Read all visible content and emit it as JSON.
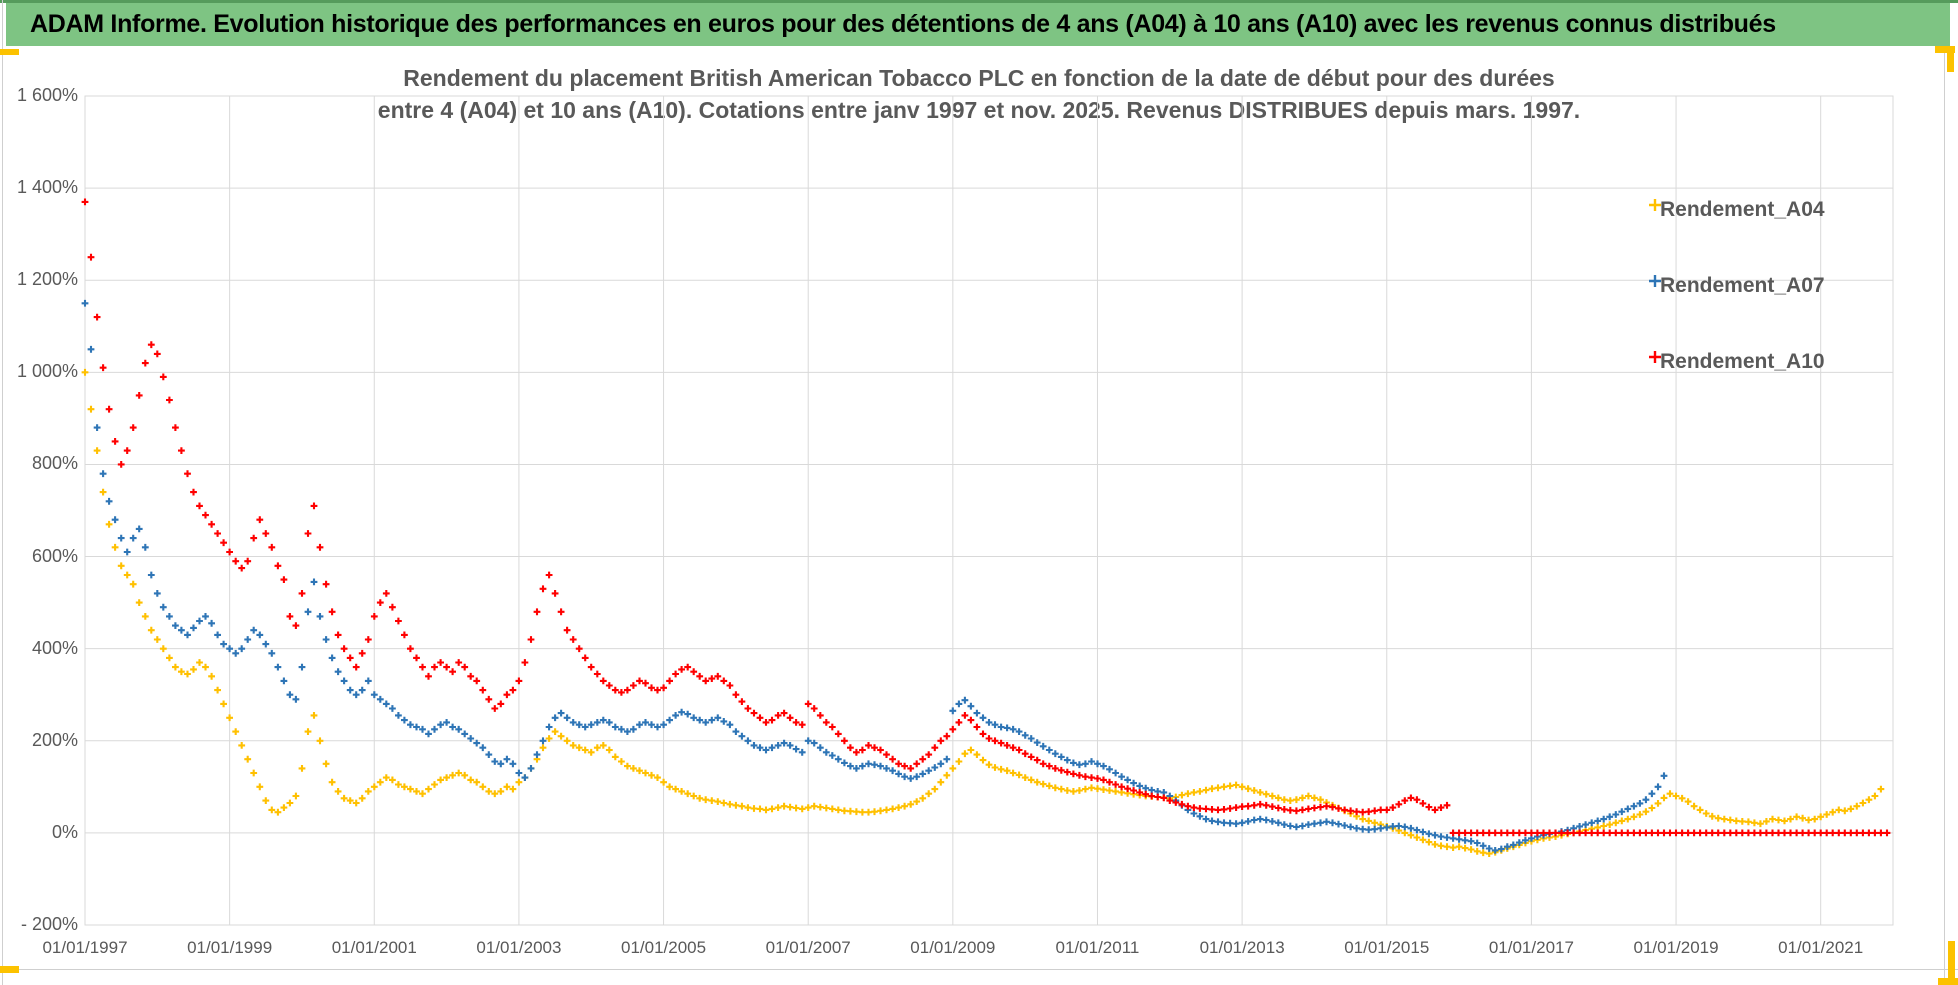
{
  "header": {
    "title": "ADAM Informe. Evolution historique des performances en euros pour des détentions de 4 ans (A04) à 10 ans (A10) avec les revenus connus distribués"
  },
  "accent_colors": {
    "header_green": "#7ec483",
    "selection_orange": "#fcc200",
    "text_gray": "#595959",
    "gridline_gray": "#d9d9d9"
  },
  "chart_data": {
    "type": "scatter",
    "marker": "plus",
    "title_line1": "Rendement du placement British American Tobacco PLC en fonction de la date de début pour des durées",
    "title_line2": "entre 4 (A04) et 10 ans (A10). Cotations entre janv 1997 et nov. 2025. Revenus DISTRIBUES depuis mars. 1997.",
    "grid": true,
    "legend_position": "right-top",
    "x_axis": {
      "start_year": 1997,
      "end_year": 2022,
      "tick_interval_years": 2,
      "tick_labels": [
        "01/01/1997",
        "01/01/1999",
        "01/01/2001",
        "01/01/2003",
        "01/01/2005",
        "01/01/2007",
        "01/01/2009",
        "01/01/2011",
        "01/01/2013",
        "01/01/2015",
        "01/01/2017",
        "01/01/2019",
        "01/01/2021"
      ]
    },
    "y_axis": {
      "min": -200,
      "max": 1600,
      "step": 200,
      "tick_labels_top_to_bottom": [
        "1 600%",
        "1 400%",
        "1 200%",
        "1 000%",
        "800%",
        "600%",
        "400%",
        "200%",
        "0%",
        "- 200%"
      ]
    },
    "series": [
      {
        "name": "Rendement_A04",
        "color": "#FFC000",
        "start": "1997-01",
        "step_months": 1,
        "values": [
          1000,
          920,
          830,
          740,
          670,
          620,
          580,
          560,
          540,
          500,
          470,
          440,
          420,
          400,
          380,
          360,
          350,
          345,
          355,
          370,
          360,
          340,
          310,
          280,
          250,
          220,
          190,
          160,
          130,
          100,
          70,
          50,
          45,
          55,
          65,
          80,
          140,
          220,
          255,
          200,
          150,
          110,
          90,
          75,
          70,
          65,
          75,
          90,
          100,
          110,
          120,
          115,
          105,
          100,
          95,
          90,
          85,
          95,
          105,
          115,
          120,
          125,
          130,
          125,
          115,
          110,
          100,
          90,
          85,
          90,
          100,
          95,
          110,
          120,
          140,
          160,
          185,
          205,
          220,
          210,
          200,
          190,
          185,
          180,
          175,
          185,
          190,
          180,
          165,
          155,
          145,
          140,
          135,
          130,
          125,
          120,
          110,
          100,
          95,
          90,
          85,
          80,
          75,
          72,
          70,
          68,
          65,
          62,
          60,
          58,
          55,
          53,
          52,
          50,
          52,
          55,
          58,
          56,
          54,
          52,
          55,
          58,
          56,
          54,
          52,
          50,
          48,
          47,
          46,
          45,
          45,
          46,
          48,
          50,
          52,
          55,
          58,
          62,
          68,
          75,
          85,
          95,
          110,
          125,
          140,
          155,
          172,
          180,
          170,
          158,
          148,
          142,
          138,
          135,
          130,
          126,
          120,
          115,
          110,
          106,
          102,
          98,
          95,
          92,
          90,
          92,
          95,
          98,
          96,
          94,
          92,
          90,
          88,
          86,
          84,
          82,
          80,
          79,
          78,
          77,
          75,
          78,
          82,
          85,
          88,
          90,
          93,
          96,
          98,
          100,
          102,
          104,
          100,
          96,
          92,
          88,
          84,
          80,
          76,
          72,
          70,
          72,
          76,
          80,
          76,
          72,
          66,
          60,
          54,
          48,
          42,
          36,
          30,
          26,
          22,
          18,
          14,
          10,
          5,
          0,
          -5,
          -10,
          -15,
          -20,
          -25,
          -28,
          -30,
          -32,
          -30,
          -33,
          -36,
          -40,
          -43,
          -45,
          -42,
          -38,
          -34,
          -30,
          -26,
          -22,
          -18,
          -15,
          -12,
          -10,
          -8,
          -5,
          -2,
          0,
          3,
          6,
          9,
          12,
          15,
          18,
          22,
          26,
          30,
          35,
          40,
          46,
          54,
          64,
          76,
          85,
          80,
          75,
          68,
          58,
          50,
          42,
          36,
          32,
          30,
          28,
          26,
          25,
          24,
          22,
          20,
          25,
          30,
          28,
          26,
          30,
          35,
          32,
          28,
          30,
          35,
          40,
          45,
          50,
          48,
          52,
          58,
          65,
          72,
          80,
          95
        ]
      },
      {
        "name": "Rendement_A07",
        "color": "#2E75B6",
        "start": "1997-01",
        "step_months": 1,
        "values": [
          1150,
          1050,
          880,
          780,
          720,
          680,
          640,
          610,
          640,
          660,
          620,
          560,
          520,
          490,
          470,
          450,
          440,
          430,
          445,
          460,
          470,
          455,
          430,
          410,
          400,
          390,
          400,
          420,
          440,
          430,
          410,
          390,
          360,
          330,
          300,
          290,
          360,
          480,
          545,
          470,
          420,
          380,
          350,
          330,
          310,
          300,
          310,
          330,
          300,
          290,
          280,
          270,
          255,
          245,
          235,
          230,
          225,
          215,
          225,
          235,
          240,
          230,
          225,
          215,
          205,
          195,
          185,
          170,
          155,
          150,
          160,
          150,
          130,
          120,
          140,
          170,
          200,
          230,
          250,
          260,
          250,
          240,
          235,
          230,
          235,
          240,
          245,
          240,
          230,
          225,
          220,
          225,
          235,
          240,
          235,
          230,
          235,
          245,
          255,
          262,
          258,
          250,
          245,
          240,
          245,
          250,
          242,
          235,
          220,
          210,
          200,
          190,
          185,
          180,
          185,
          190,
          195,
          190,
          182,
          175,
          200,
          195,
          185,
          175,
          168,
          160,
          152,
          145,
          140,
          145,
          150,
          148,
          145,
          140,
          135,
          128,
          122,
          118,
          122,
          128,
          135,
          142,
          150,
          160,
          265,
          280,
          288,
          275,
          260,
          250,
          240,
          235,
          230,
          228,
          225,
          220,
          212,
          205,
          196,
          188,
          180,
          172,
          165,
          158,
          152,
          148,
          150,
          155,
          150,
          145,
          138,
          130,
          122,
          115,
          108,
          102,
          97,
          93,
          90,
          88,
          80,
          70,
          60,
          50,
          42,
          36,
          30,
          26,
          24,
          22,
          21,
          20,
          22,
          25,
          28,
          30,
          28,
          25,
          22,
          18,
          15,
          13,
          15,
          18,
          20,
          22,
          24,
          22,
          19,
          16,
          13,
          10,
          8,
          7,
          8,
          10,
          12,
          14,
          15,
          13,
          10,
          6,
          2,
          -2,
          -5,
          -8,
          -10,
          -12,
          -14,
          -16,
          -18,
          -22,
          -28,
          -34,
          -38,
          -35,
          -30,
          -26,
          -21,
          -16,
          -12,
          -8,
          -5,
          -2,
          0,
          3,
          6,
          10,
          14,
          18,
          22,
          26,
          30,
          35,
          40,
          46,
          52,
          58,
          64,
          72,
          85,
          100,
          124
        ]
      },
      {
        "name": "Rendement_A10",
        "color": "#FF0000",
        "start": "1997-01",
        "step_months": 1,
        "values": [
          1370,
          1250,
          1120,
          1010,
          920,
          850,
          800,
          830,
          880,
          950,
          1020,
          1060,
          1040,
          990,
          940,
          880,
          830,
          780,
          740,
          710,
          690,
          670,
          650,
          630,
          610,
          590,
          575,
          590,
          640,
          680,
          650,
          620,
          580,
          550,
          470,
          450,
          520,
          650,
          710,
          620,
          540,
          480,
          430,
          400,
          380,
          360,
          390,
          420,
          470,
          500,
          520,
          490,
          460,
          430,
          400,
          380,
          360,
          340,
          360,
          370,
          360,
          350,
          370,
          360,
          340,
          330,
          310,
          290,
          270,
          280,
          300,
          310,
          330,
          370,
          420,
          480,
          530,
          560,
          520,
          480,
          440,
          420,
          400,
          380,
          360,
          345,
          330,
          320,
          310,
          305,
          310,
          320,
          330,
          325,
          315,
          310,
          315,
          330,
          345,
          355,
          360,
          350,
          340,
          330,
          335,
          340,
          330,
          320,
          300,
          285,
          270,
          260,
          250,
          240,
          245,
          255,
          260,
          250,
          240,
          235,
          280,
          270,
          255,
          240,
          230,
          215,
          200,
          185,
          175,
          180,
          190,
          185,
          180,
          170,
          160,
          150,
          145,
          140,
          150,
          160,
          170,
          185,
          200,
          210,
          225,
          240,
          255,
          245,
          230,
          215,
          205,
          200,
          195,
          190,
          185,
          180,
          172,
          165,
          158,
          150,
          145,
          140,
          136,
          132,
          128,
          125,
          122,
          120,
          118,
          115,
          110,
          105,
          100,
          96,
          92,
          88,
          84,
          80,
          78,
          76,
          70,
          66,
          62,
          58,
          55,
          53,
          52,
          51,
          50,
          51,
          53,
          55,
          57,
          58,
          60,
          62,
          60,
          57,
          54,
          51,
          49,
          48,
          50,
          52,
          54,
          56,
          58,
          56,
          53,
          50,
          48,
          46,
          45,
          46,
          48,
          50,
          50,
          55,
          62,
          70,
          76,
          72,
          64,
          56,
          50,
          55,
          60,
          0,
          0,
          0,
          0,
          0,
          0,
          0,
          0,
          0,
          0,
          0,
          0,
          0,
          0,
          0,
          0,
          0,
          0,
          0,
          0,
          0,
          0,
          0,
          0,
          0,
          0,
          0,
          0,
          0,
          0,
          0,
          0,
          0,
          0,
          0,
          0,
          0,
          0,
          0,
          0,
          0,
          0,
          0,
          0,
          0,
          0,
          0,
          0,
          0,
          0,
          0,
          0,
          0,
          0,
          0,
          0,
          0,
          0,
          0,
          0,
          0,
          0,
          0,
          0,
          0,
          0,
          0,
          0,
          0,
          0,
          0,
          0,
          0
        ]
      }
    ]
  }
}
